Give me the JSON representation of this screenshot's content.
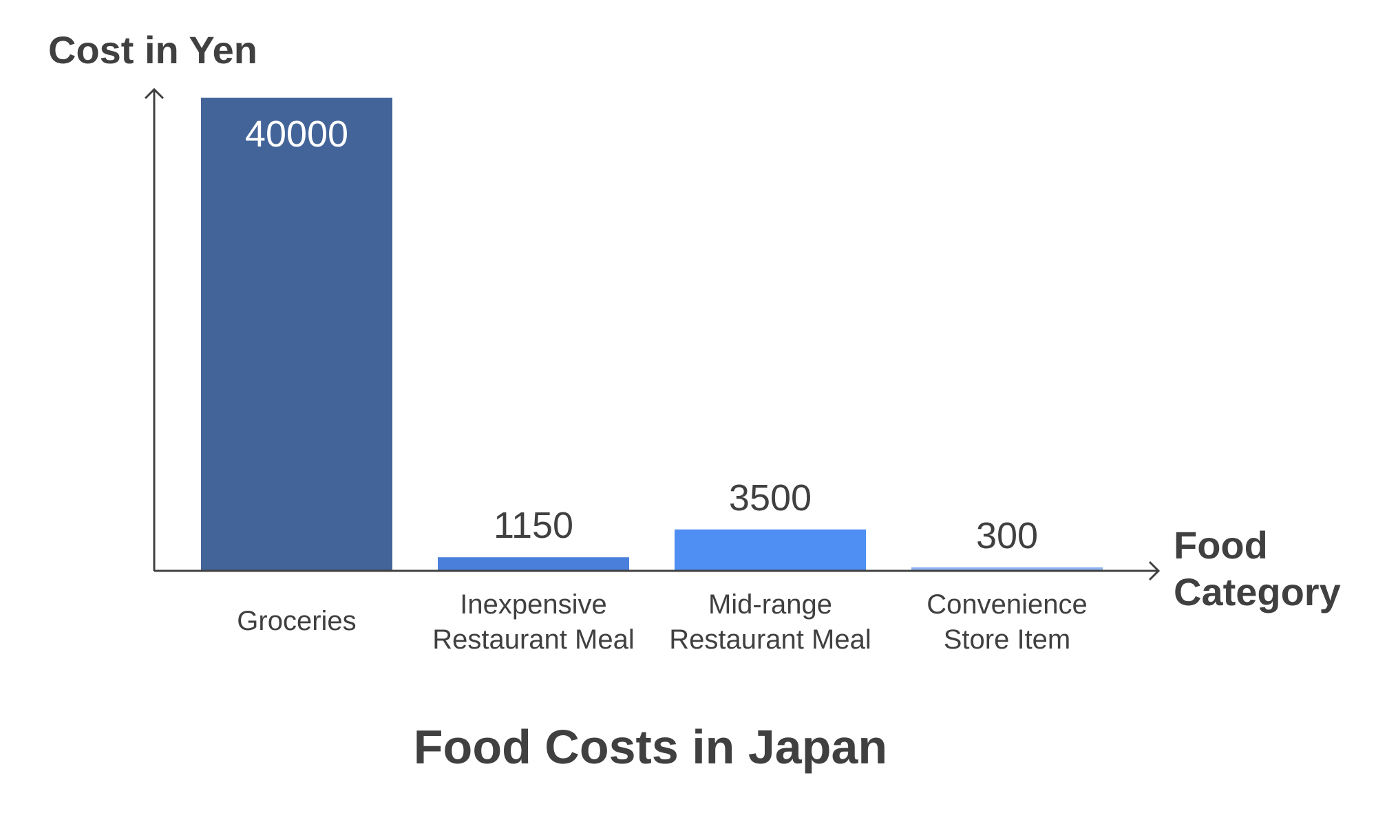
{
  "chart_data": {
    "type": "bar",
    "title": "Food Costs in Japan",
    "ylabel": "Cost in Yen",
    "xlabel": [
      "Food",
      "Category"
    ],
    "categories": [
      [
        "Groceries"
      ],
      [
        "Inexpensive",
        "Restaurant Meal"
      ],
      [
        "Mid-range",
        "Restaurant Meal"
      ],
      [
        "Convenience",
        "Store Item"
      ]
    ],
    "values": [
      40000,
      1150,
      3500,
      300
    ],
    "value_labels": [
      "40000",
      "1150",
      "3500",
      "300"
    ],
    "ylim": [
      0,
      40000
    ],
    "grid": false,
    "legend": "none"
  },
  "colors": {
    "bars": [
      "#436499",
      "#4a80dc",
      "#4f8ef2",
      "#8fb3f0"
    ],
    "value_label_inside": "#ffffff",
    "value_label_outside": "#404040",
    "axis": "#404040",
    "text": "#404040"
  }
}
